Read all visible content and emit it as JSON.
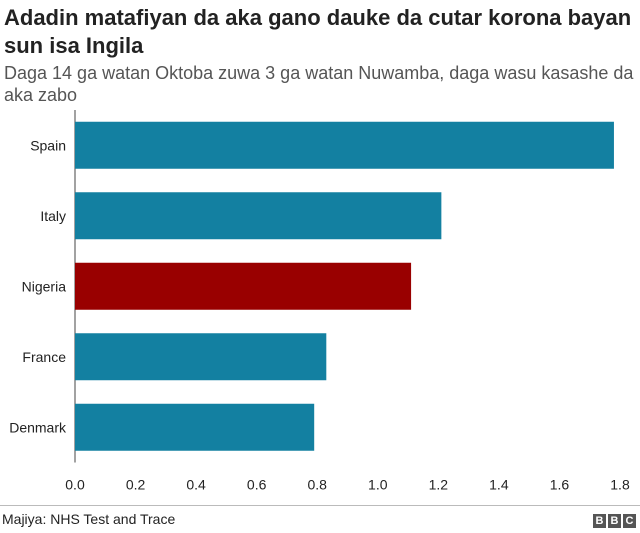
{
  "header": {
    "title": "Adadin matafiyan da aka gano dauke da cutar korona bayan sun isa Ingila",
    "subtitle": "Daga 14 ga watan Oktoba zuwa 3 ga watan Nuwamba, daga wasu kasashe da aka zabo"
  },
  "footer": {
    "source": "Majiya: NHS Test and Trace",
    "logo_letters": [
      "B",
      "B",
      "C"
    ]
  },
  "colors": {
    "default_bar": "#1380A1",
    "highlight_bar": "#990000"
  },
  "chart_data": {
    "type": "bar",
    "orientation": "horizontal",
    "categories": [
      "Spain",
      "Italy",
      "Nigeria",
      "France",
      "Denmark"
    ],
    "values": [
      1.78,
      1.21,
      1.11,
      0.83,
      0.79
    ],
    "highlight": "Nigeria",
    "xlim": [
      0,
      1.8
    ],
    "xticks": [
      "0.0",
      "0.2",
      "0.4",
      "0.6",
      "0.8",
      "1.0",
      "1.2",
      "1.4",
      "1.6",
      "1.8"
    ],
    "grid": false,
    "legend": "none",
    "title": "Adadin matafiyan da aka gano dauke da cutar korona bayan sun isa Ingila",
    "subtitle": "Daga 14 ga watan Oktoba zuwa 3 ga watan Nuwamba, daga wasu kasashe da aka zabo",
    "xlabel": "",
    "ylabel": ""
  }
}
